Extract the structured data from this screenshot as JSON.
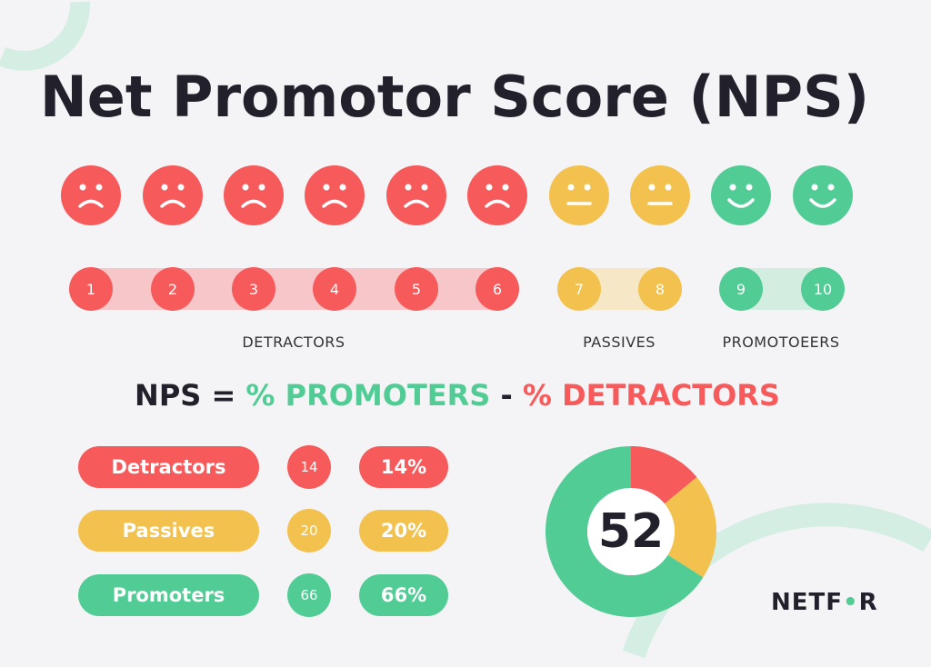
{
  "title": "Net Promotor Score (NPS)",
  "colors": {
    "detractor": "#f65a5b",
    "passive": "#f2c14e",
    "promoter": "#52cc95",
    "text": "#22202b",
    "background": "#f4f4f7"
  },
  "scale": [
    {
      "n": "1",
      "group": "detractor",
      "face": "sad"
    },
    {
      "n": "2",
      "group": "detractor",
      "face": "sad"
    },
    {
      "n": "3",
      "group": "detractor",
      "face": "sad"
    },
    {
      "n": "4",
      "group": "detractor",
      "face": "sad"
    },
    {
      "n": "5",
      "group": "detractor",
      "face": "sad"
    },
    {
      "n": "6",
      "group": "detractor",
      "face": "sad"
    },
    {
      "n": "7",
      "group": "passive",
      "face": "neutral"
    },
    {
      "n": "8",
      "group": "passive",
      "face": "neutral"
    },
    {
      "n": "9",
      "group": "promoter",
      "face": "happy"
    },
    {
      "n": "10",
      "group": "promoter",
      "face": "happy"
    }
  ],
  "group_labels": {
    "detractors": "DETRACTORS",
    "passives": "PASSIVES",
    "promoters": "PROMOTOEERS"
  },
  "formula": {
    "lhs": "NPS =",
    "promoters": "% PROMOTERS",
    "minus": "-",
    "detractors": "% DETRACTORS"
  },
  "results": [
    {
      "label": "Detractors",
      "count": "14",
      "percent": "14%",
      "group": "detractor"
    },
    {
      "label": "Passives",
      "count": "20",
      "percent": "20%",
      "group": "passive"
    },
    {
      "label": "Promoters",
      "count": "66",
      "percent": "66%",
      "group": "promoter"
    }
  ],
  "chart_data": {
    "type": "pie",
    "variant": "donut",
    "categories": [
      "Detractors",
      "Passives",
      "Promoters"
    ],
    "values": [
      14,
      20,
      66
    ],
    "center_label": "52"
  },
  "logo": "NETFOR"
}
